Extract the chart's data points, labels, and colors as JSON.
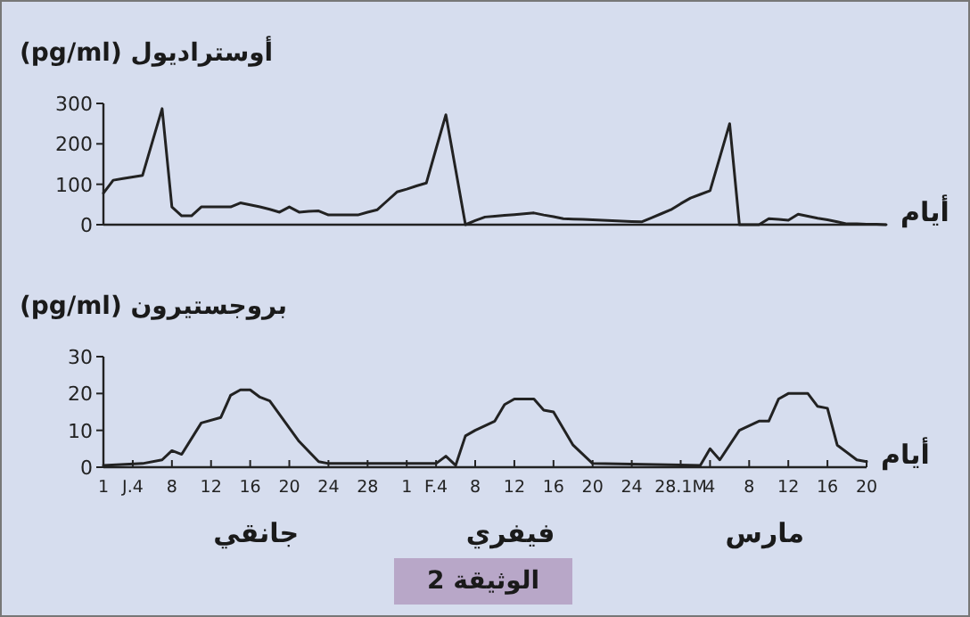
{
  "chart_data": [
    {
      "type": "line",
      "ylabel": "أوستراديول (pg/ml)",
      "xlabel": "أيام",
      "ylim": [
        0,
        300
      ],
      "yticks": [
        0,
        100,
        200,
        300
      ],
      "tick_labels": "y",
      "categories": [
        null,
        null,
        null,
        null,
        null,
        null,
        null,
        null,
        null,
        null,
        null,
        null,
        null,
        null,
        null,
        null,
        null,
        null,
        null,
        null,
        null,
        null,
        null,
        null,
        null,
        null,
        null,
        null,
        null,
        null,
        null,
        null,
        null,
        null,
        null,
        null,
        null,
        null,
        null,
        null,
        null,
        null,
        null,
        null,
        null,
        null,
        null,
        null,
        null,
        null,
        null,
        null,
        null,
        null,
        null,
        null,
        null,
        null,
        null,
        null,
        null,
        null,
        null,
        null,
        null,
        null,
        null,
        null,
        null,
        null,
        null,
        null,
        null,
        null,
        null,
        null,
        null,
        null,
        null,
        null,
        null
      ],
      "series": [
        {
          "color": "#222222",
          "values": [
            78,
            110,
            114,
            118,
            122,
            205,
            287,
            44,
            22,
            22,
            44,
            44,
            44,
            44,
            54,
            49,
            44,
            38,
            31,
            44,
            31,
            33,
            34,
            24,
            24,
            24,
            24,
            31,
            37,
            59,
            81,
            88,
            96,
            103,
            188,
            272,
            136,
            0,
            10,
            19,
            21,
            23,
            25,
            27,
            29,
            24,
            20,
            15,
            14,
            13,
            12,
            11,
            10,
            9,
            8,
            7,
            17,
            27,
            37,
            52,
            66,
            75,
            84,
            167,
            250,
            0,
            0,
            0,
            15,
            13,
            11,
            26,
            21,
            16,
            12,
            7,
            2,
            2,
            1,
            1,
            0
          ]
        }
      ]
    },
    {
      "type": "line",
      "ylabel": "بروجستيرون (pg/ml)",
      "xlabel": "أيام",
      "xlim": [
        "--01-01",
        "--03-20"
      ],
      "ylim": [
        0,
        30
      ],
      "yticks": [
        0,
        10,
        20,
        30
      ],
      "xticks": [
        {
          "value": "--01-01",
          "label": "1"
        },
        {
          "value": "--01-04",
          "label": "J.4"
        },
        {
          "value": "--01-08",
          "label": "8"
        },
        {
          "value": "--01-12",
          "label": "12"
        },
        {
          "value": "--01-16",
          "label": "16"
        },
        {
          "value": "--01-20",
          "label": "20"
        },
        {
          "value": "--01-24",
          "label": "24"
        },
        {
          "value": "--01-28",
          "label": "28"
        },
        {
          "value": "--02-01",
          "label": "1"
        },
        {
          "value": "--02-04",
          "label": "F.4"
        },
        {
          "value": "--02-08",
          "label": "8"
        },
        {
          "value": "--02-12",
          "label": "12"
        },
        {
          "value": "--02-16",
          "label": "16"
        },
        {
          "value": "--02-20",
          "label": "20"
        },
        {
          "value": "--02-24",
          "label": "24"
        },
        {
          "value": "--03-01",
          "label": "28.1M"
        },
        {
          "value": "--03-04",
          "label": "4"
        },
        {
          "value": "--03-08",
          "label": "8"
        },
        {
          "value": "--03-12",
          "label": "12"
        },
        {
          "value": "--03-16",
          "label": "16"
        },
        {
          "value": "--03-20",
          "label": "20"
        }
      ],
      "series": [
        {
          "color": "#222222",
          "x": [
            "--01-01",
            "--01-05",
            "--01-07",
            "--01-08",
            "--01-09",
            "--01-11",
            "--01-13",
            "--01-14",
            "--01-15",
            "--01-16",
            "--01-17",
            "--01-18",
            "--01-21",
            "--01-23",
            "--01-24",
            "--02-04",
            "--02-05",
            "--02-06",
            "--02-07",
            "--02-08",
            "--02-10",
            "--02-11",
            "--02-12",
            "--02-14",
            "--02-15",
            "--02-16",
            "--02-18",
            "--02-20",
            "--03-03",
            "--03-04",
            "--03-05",
            "--03-07",
            "--03-09",
            "--03-10",
            "--03-11",
            "--03-12",
            "--03-14",
            "--03-15",
            "--03-16",
            "--03-17",
            "--03-19",
            "--03-20"
          ],
          "values": [
            0.5,
            1,
            2,
            4.5,
            3.5,
            12,
            13.5,
            19.5,
            21,
            21,
            19,
            18,
            7,
            1.5,
            1,
            1,
            3,
            0.5,
            8.5,
            10,
            12.5,
            17,
            18.5,
            18.5,
            15.5,
            15,
            6,
            1,
            0.5,
            5,
            2,
            10,
            12.5,
            12.5,
            18.5,
            20,
            20,
            16.5,
            16,
            6,
            2,
            1.5
          ]
        }
      ],
      "annotations": [
        "جانقي",
        "فيفري",
        "مارس",
        "الوثيقة 2"
      ]
    }
  ]
}
